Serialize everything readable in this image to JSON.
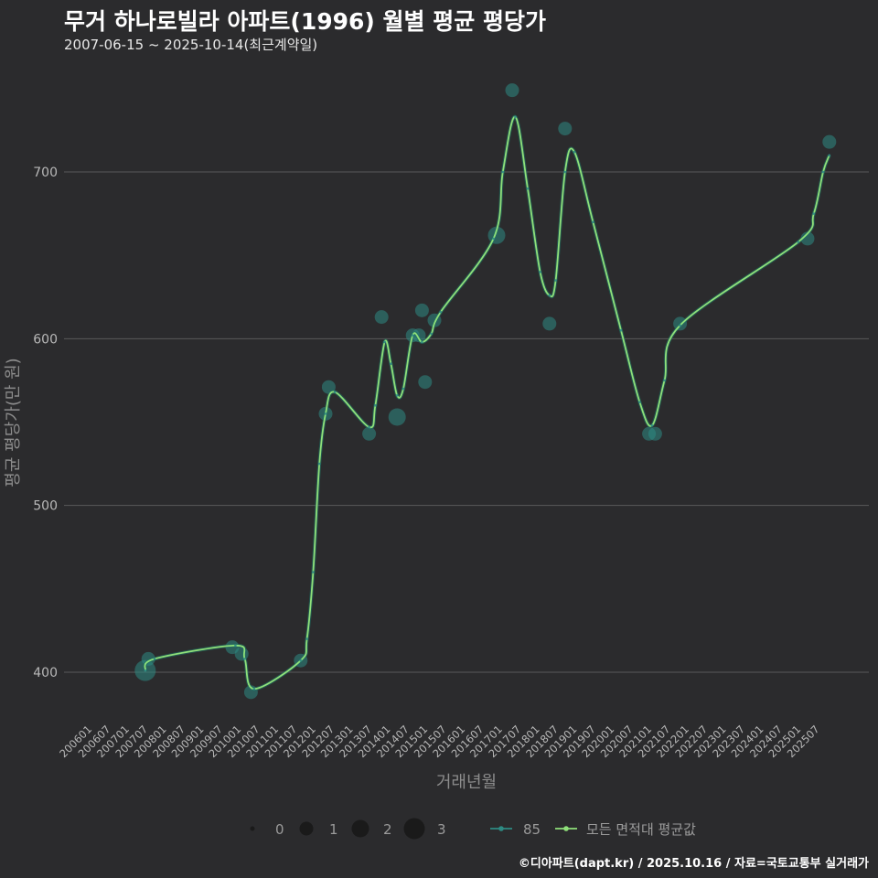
{
  "title": "무거 하나로빌라 아파트(1996) 월별 평균 평당가",
  "subtitle": "2007-06-15 ~ 2025-10-14(최근계약일)",
  "caption": "©디아파트(dapt.kr) / 2025.10.16 / 자료=국토교통부 실거래가",
  "colors": {
    "background": "#2b2b2d",
    "grid": "#5a5a5a",
    "points": "#2e8b83",
    "line": "#8fe07a",
    "tick_text": "#b8b8b8",
    "axis_title": "#8c8c8c"
  },
  "chart_data": {
    "type": "scatter",
    "xlabel": "거래년월",
    "ylabel": "평균 평당가(만 원)",
    "ylim": [
      370,
      760
    ],
    "yticks": [
      400,
      500,
      600,
      700
    ],
    "xlim": [
      "2006-01",
      "2025-12"
    ],
    "xticks": [
      "200601",
      "200607",
      "200701",
      "200707",
      "200801",
      "200807",
      "200901",
      "200907",
      "201001",
      "201007",
      "201101",
      "201107",
      "201201",
      "201207",
      "201301",
      "201307",
      "201401",
      "201407",
      "201501",
      "201507",
      "201601",
      "201607",
      "201701",
      "201707",
      "201801",
      "201807",
      "201901",
      "201907",
      "202001",
      "202007",
      "202101",
      "202107",
      "202201",
      "202207",
      "202301",
      "202307",
      "202401",
      "202407",
      "202501",
      "202507"
    ],
    "grid": "horizontal",
    "series": [
      {
        "name": "85",
        "kind": "points",
        "points": [
          {
            "x": "2007-06",
            "y": 401,
            "count": 3
          },
          {
            "x": "2007-07",
            "y": 408,
            "count": 1
          },
          {
            "x": "2009-10",
            "y": 415,
            "count": 1
          },
          {
            "x": "2010-01",
            "y": 411,
            "count": 1
          },
          {
            "x": "2010-04",
            "y": 388,
            "count": 1
          },
          {
            "x": "2011-08",
            "y": 407,
            "count": 1
          },
          {
            "x": "2012-04",
            "y": 555,
            "count": 1
          },
          {
            "x": "2012-05",
            "y": 571,
            "count": 1
          },
          {
            "x": "2013-06",
            "y": 543,
            "count": 1
          },
          {
            "x": "2013-10",
            "y": 613,
            "count": 1
          },
          {
            "x": "2014-03",
            "y": 553,
            "count": 2
          },
          {
            "x": "2014-08",
            "y": 602,
            "count": 1
          },
          {
            "x": "2014-10",
            "y": 602,
            "count": 1
          },
          {
            "x": "2014-11",
            "y": 617,
            "count": 1
          },
          {
            "x": "2014-12",
            "y": 574,
            "count": 1
          },
          {
            "x": "2015-03",
            "y": 611,
            "count": 1
          },
          {
            "x": "2016-11",
            "y": 662,
            "count": 2
          },
          {
            "x": "2017-04",
            "y": 749,
            "count": 1
          },
          {
            "x": "2018-04",
            "y": 609,
            "count": 1
          },
          {
            "x": "2018-09",
            "y": 726,
            "count": 1
          },
          {
            "x": "2020-12",
            "y": 543,
            "count": 1
          },
          {
            "x": "2021-02",
            "y": 543,
            "count": 1
          },
          {
            "x": "2021-10",
            "y": 609,
            "count": 1
          },
          {
            "x": "2025-03",
            "y": 660,
            "count": 1
          },
          {
            "x": "2025-10",
            "y": 718,
            "count": 1
          }
        ]
      },
      {
        "name": "모든 면적대 평균값",
        "kind": "line",
        "points": [
          {
            "x": "2007-06",
            "y": 401
          },
          {
            "x": "2007-09",
            "y": 408
          },
          {
            "x": "2009-11",
            "y": 416
          },
          {
            "x": "2010-02",
            "y": 408
          },
          {
            "x": "2010-05",
            "y": 390
          },
          {
            "x": "2011-08",
            "y": 407
          },
          {
            "x": "2011-10",
            "y": 420
          },
          {
            "x": "2011-12",
            "y": 460
          },
          {
            "x": "2012-02",
            "y": 525
          },
          {
            "x": "2012-04",
            "y": 555
          },
          {
            "x": "2012-07",
            "y": 568
          },
          {
            "x": "2013-06",
            "y": 547
          },
          {
            "x": "2013-08",
            "y": 560
          },
          {
            "x": "2013-11",
            "y": 598
          },
          {
            "x": "2014-01",
            "y": 585
          },
          {
            "x": "2014-03",
            "y": 566
          },
          {
            "x": "2014-05",
            "y": 570
          },
          {
            "x": "2014-08",
            "y": 602
          },
          {
            "x": "2014-11",
            "y": 598
          },
          {
            "x": "2015-02",
            "y": 603
          },
          {
            "x": "2015-05",
            "y": 616
          },
          {
            "x": "2016-10",
            "y": 660
          },
          {
            "x": "2017-01",
            "y": 700
          },
          {
            "x": "2017-05",
            "y": 733
          },
          {
            "x": "2017-09",
            "y": 690
          },
          {
            "x": "2018-01",
            "y": 640
          },
          {
            "x": "2018-04",
            "y": 626
          },
          {
            "x": "2018-06",
            "y": 635
          },
          {
            "x": "2018-09",
            "y": 700
          },
          {
            "x": "2018-12",
            "y": 712
          },
          {
            "x": "2019-06",
            "y": 670
          },
          {
            "x": "2020-03",
            "y": 605
          },
          {
            "x": "2020-09",
            "y": 562
          },
          {
            "x": "2021-01",
            "y": 548
          },
          {
            "x": "2021-05",
            "y": 575
          },
          {
            "x": "2021-10",
            "y": 608
          },
          {
            "x": "2024-12",
            "y": 658
          },
          {
            "x": "2025-05",
            "y": 675
          },
          {
            "x": "2025-08",
            "y": 700
          },
          {
            "x": "2025-10",
            "y": 710
          }
        ]
      }
    ],
    "legend": {
      "size_label": "",
      "sizes": [
        0,
        1,
        2,
        3
      ],
      "series_labels": [
        "85",
        "모든 면적대 평균값"
      ],
      "position": "bottom"
    }
  }
}
